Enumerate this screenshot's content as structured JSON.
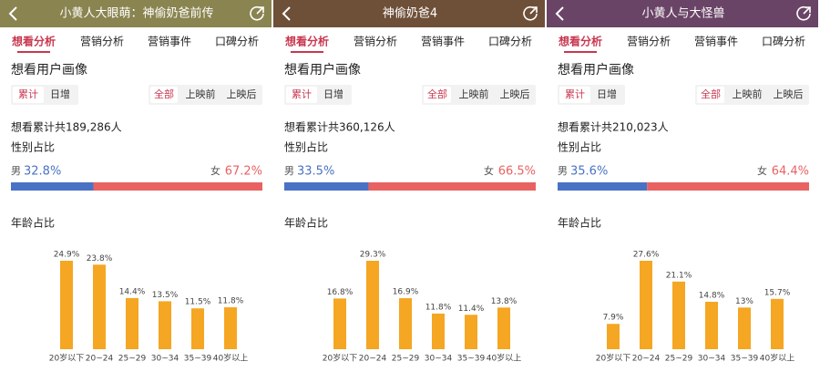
{
  "panels": [
    {
      "title": "小黄人大眼萌：神偷奶爸前传",
      "header_color": "#8a8450",
      "tabs": [
        "想看分析",
        "营销分析",
        "营销事件",
        "口碑分析"
      ],
      "section_title": "想看用户画像",
      "mode_tabs": [
        "累计",
        "日增"
      ],
      "time_tabs": [
        "全部",
        "上映前",
        "上映后"
      ],
      "total": "想看累计共189,286人",
      "gender_title": "性别占比",
      "gender": {
        "type": "stacked-bar",
        "categories": [
          "男",
          "女"
        ],
        "values": [
          32.8,
          67.2
        ],
        "value_labels": [
          "32.8%",
          "67.2%"
        ],
        "colors": [
          "#4a72c4",
          "#e96262"
        ]
      },
      "chart_data": {
        "type": "bar",
        "title": "年龄占比",
        "color": "#f5a623",
        "categories": [
          "20岁以下",
          "20~24",
          "25~29",
          "30~34",
          "35~39",
          "40岁以上"
        ],
        "values": [
          24.9,
          23.8,
          14.4,
          13.5,
          11.5,
          11.8
        ],
        "value_labels": [
          "24.9%",
          "23.8%",
          "14.4%",
          "13.5%",
          "11.5%",
          "11.8%"
        ]
      }
    },
    {
      "title": "神偷奶爸4",
      "header_color": "#6e5038",
      "tabs": [
        "想看分析",
        "营销分析",
        "营销事件",
        "口碑分析"
      ],
      "section_title": "想看用户画像",
      "mode_tabs": [
        "累计",
        "日增"
      ],
      "time_tabs": [
        "全部",
        "上映前",
        "上映后"
      ],
      "total": "想看累计共360,126人",
      "gender_title": "性别占比",
      "gender": {
        "type": "stacked-bar",
        "categories": [
          "男",
          "女"
        ],
        "values": [
          33.5,
          66.5
        ],
        "value_labels": [
          "33.5%",
          "66.5%"
        ],
        "colors": [
          "#4a72c4",
          "#e96262"
        ]
      },
      "chart_data": {
        "type": "bar",
        "title": "年龄占比",
        "color": "#f5a623",
        "categories": [
          "20岁以下",
          "20~24",
          "25~29",
          "30~34",
          "35~39",
          "40岁以上"
        ],
        "values": [
          16.8,
          29.3,
          16.9,
          11.8,
          11.4,
          13.8
        ],
        "value_labels": [
          "16.8%",
          "29.3%",
          "16.9%",
          "11.8%",
          "11.4%",
          "13.8%"
        ]
      }
    },
    {
      "title": "小黄人与大怪兽",
      "header_color": "#6a4466",
      "tabs": [
        "想看分析",
        "营销分析",
        "营销事件",
        "口碑分析"
      ],
      "section_title": "想看用户画像",
      "mode_tabs": [
        "累计",
        "日增"
      ],
      "time_tabs": [
        "全部",
        "上映前",
        "上映后"
      ],
      "total": "想看累计共210,023人",
      "gender_title": "性别占比",
      "gender": {
        "type": "stacked-bar",
        "categories": [
          "男",
          "女"
        ],
        "values": [
          35.6,
          64.4
        ],
        "value_labels": [
          "35.6%",
          "64.4%"
        ],
        "colors": [
          "#4a72c4",
          "#e96262"
        ]
      },
      "chart_data": {
        "type": "bar",
        "title": "年龄占比",
        "color": "#f5a623",
        "categories": [
          "20岁以下",
          "20~24",
          "25~29",
          "30~34",
          "35~39",
          "40岁以上"
        ],
        "values": [
          7.9,
          27.6,
          21.1,
          14.8,
          13,
          15.7
        ],
        "value_labels": [
          "7.9%",
          "27.6%",
          "21.1%",
          "14.8%",
          "13%",
          "15.7%"
        ]
      }
    }
  ]
}
